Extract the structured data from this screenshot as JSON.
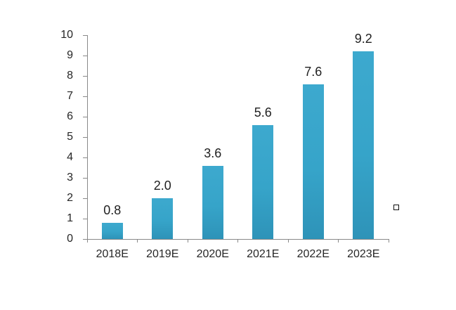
{
  "chart_data": {
    "type": "bar",
    "categories": [
      "2018E",
      "2019E",
      "2020E",
      "2021E",
      "2022E",
      "2023E"
    ],
    "values": [
      0.8,
      2.0,
      3.6,
      5.6,
      7.6,
      9.2
    ],
    "data_labels": [
      "0.8",
      "2.0",
      "3.6",
      "5.6",
      "7.6",
      "9.2"
    ],
    "title": "",
    "xlabel": "",
    "ylabel": "",
    "ylim": [
      0,
      10
    ],
    "ytick_step": 1,
    "ytick_labels": [
      "0",
      "1",
      "2",
      "3",
      "4",
      "5",
      "6",
      "7",
      "8",
      "9",
      "10"
    ],
    "grid": false,
    "legend": {
      "position": "right",
      "marker": "empty-square",
      "label": ""
    },
    "colors": {
      "bar": "#36a4c9",
      "bar_gradient_top": "#3da9ce",
      "bar_gradient_bottom": "#2e93b8",
      "axis": "#898989",
      "text": "#262626",
      "data_label_text": "#1f1f1f",
      "background": "#ffffff"
    }
  }
}
